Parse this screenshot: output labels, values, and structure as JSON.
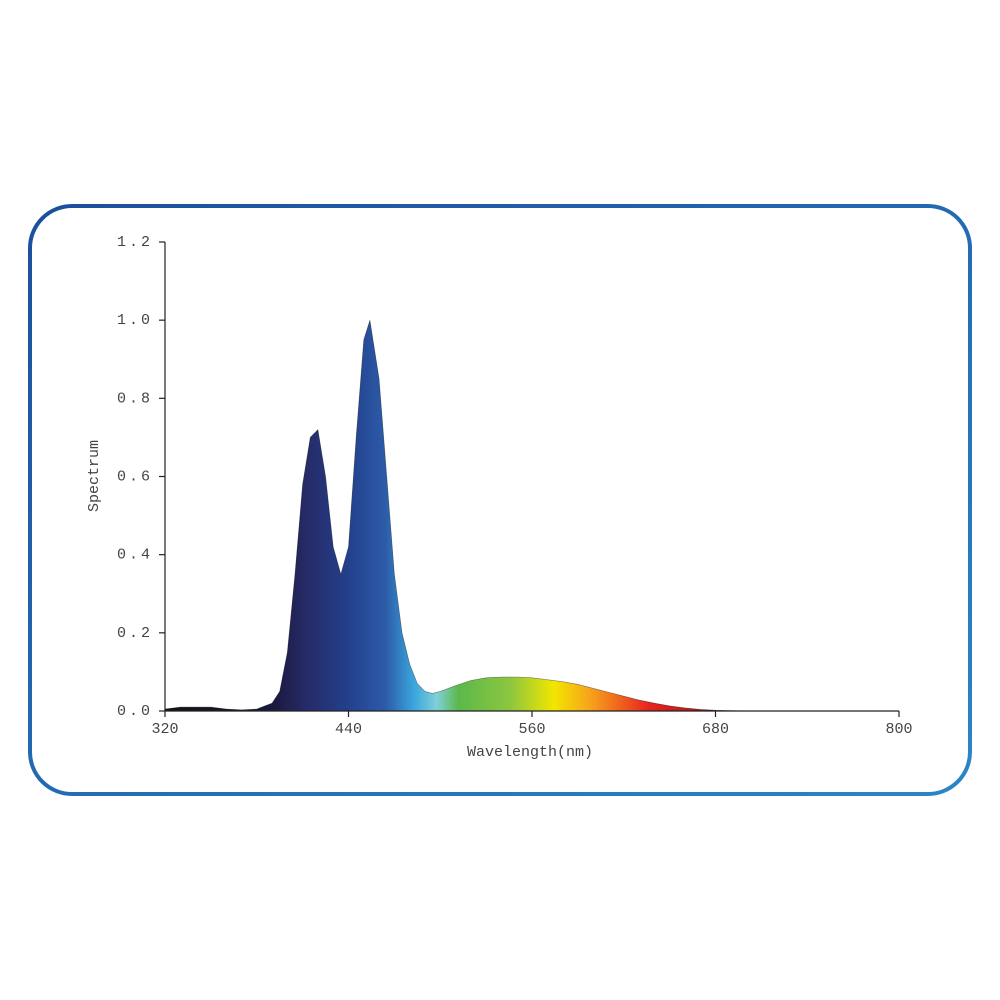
{
  "chart_data": {
    "type": "area",
    "x_label": "Wavelength(nm)",
    "y_label": "Spectrum",
    "xlim": [
      320,
      800
    ],
    "xticks": [
      320,
      440,
      560,
      680,
      800
    ],
    "ylim": [
      0,
      1.2
    ],
    "yticks": [
      {
        "value": 0,
        "label": "0.0"
      },
      0.2,
      0.4,
      0.6,
      0.8,
      {
        "value": 1,
        "label": "1.0"
      },
      1.2
    ],
    "x": [
      320,
      330,
      340,
      350,
      360,
      370,
      380,
      390,
      395,
      400,
      405,
      410,
      415,
      420,
      425,
      430,
      435,
      440,
      445,
      450,
      454,
      460,
      465,
      470,
      475,
      480,
      485,
      490,
      495,
      500,
      510,
      520,
      530,
      540,
      550,
      560,
      570,
      580,
      590,
      600,
      610,
      620,
      630,
      640,
      650,
      660,
      670,
      680,
      690,
      700
    ],
    "values": [
      0.005,
      0.01,
      0.01,
      0.01,
      0.005,
      0.003,
      0.005,
      0.02,
      0.05,
      0.15,
      0.35,
      0.58,
      0.7,
      0.72,
      0.6,
      0.42,
      0.35,
      0.42,
      0.7,
      0.95,
      1.0,
      0.85,
      0.6,
      0.35,
      0.2,
      0.12,
      0.07,
      0.05,
      0.045,
      0.05,
      0.065,
      0.078,
      0.085,
      0.087,
      0.087,
      0.085,
      0.08,
      0.075,
      0.068,
      0.058,
      0.048,
      0.038,
      0.028,
      0.02,
      0.013,
      0.008,
      0.004,
      0.002,
      0.001,
      0
    ]
  }
}
